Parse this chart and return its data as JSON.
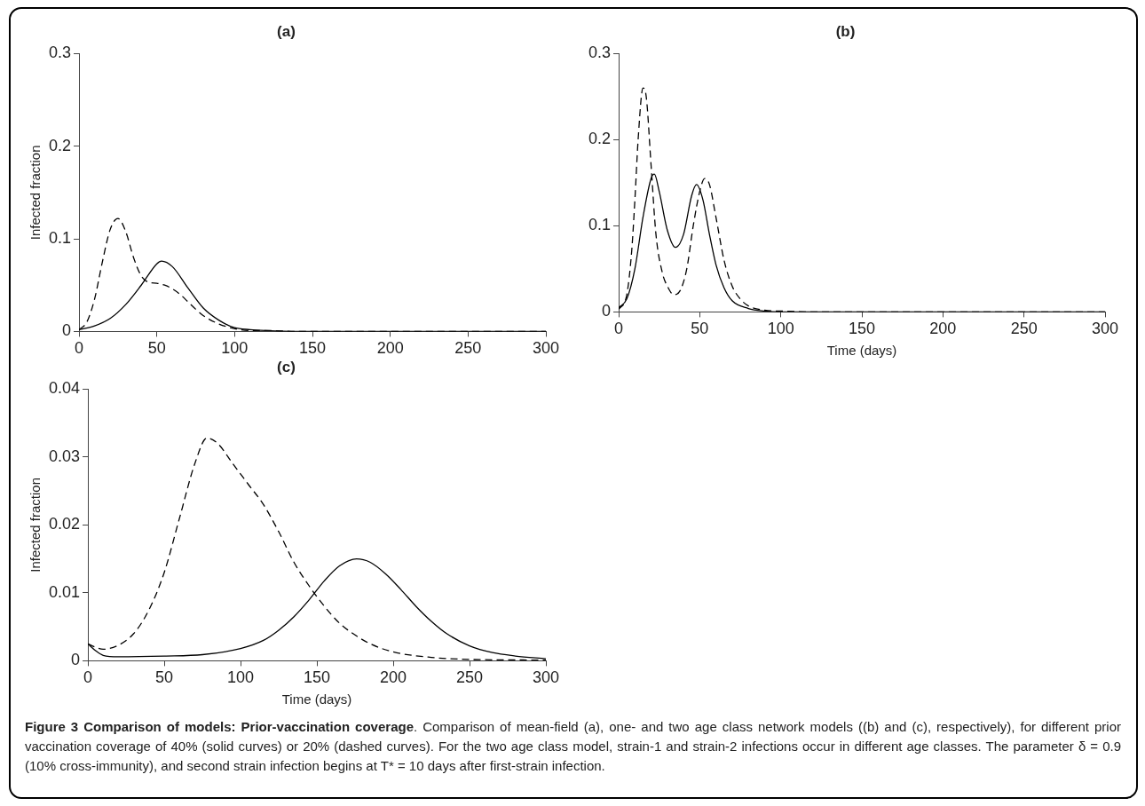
{
  "chart_data": [
    {
      "type": "line",
      "title": "(a)",
      "ylabel": "Infected fraction",
      "xlim": [
        0,
        300
      ],
      "xticks": [
        0,
        50,
        100,
        150,
        200,
        250,
        300
      ],
      "ylim": [
        0,
        0.3
      ],
      "yticks": [
        0,
        0.1,
        0.2,
        0.3
      ],
      "grid": false,
      "legend": false,
      "marker": "none",
      "series": [
        {
          "color": "#000000",
          "line_style": "solid",
          "x": [
            0,
            10,
            20,
            30,
            40,
            50,
            53,
            60,
            70,
            80,
            90,
            100,
            110,
            120,
            140,
            200,
            300
          ],
          "values": [
            0.002,
            0.006,
            0.014,
            0.029,
            0.05,
            0.073,
            0.076,
            0.07,
            0.047,
            0.025,
            0.012,
            0.004,
            0.002,
            0.001,
            0,
            0,
            0
          ]
        },
        {
          "color": "#000000",
          "line_style": "dashed",
          "x": [
            0,
            5,
            10,
            15,
            20,
            25,
            30,
            35,
            40,
            45,
            50,
            55,
            60,
            65,
            70,
            75,
            80,
            90,
            100,
            110,
            120,
            140,
            200,
            300
          ],
          "values": [
            0.002,
            0.01,
            0.035,
            0.075,
            0.11,
            0.122,
            0.108,
            0.08,
            0.06,
            0.053,
            0.052,
            0.05,
            0.046,
            0.04,
            0.032,
            0.024,
            0.017,
            0.008,
            0.003,
            0.001,
            0.001,
            0,
            0,
            0
          ]
        }
      ]
    },
    {
      "type": "line",
      "title": "(b)",
      "xlabel": "Time (days)",
      "xlim": [
        0,
        300
      ],
      "xticks": [
        0,
        50,
        100,
        150,
        200,
        250,
        300
      ],
      "ylim": [
        0,
        0.3
      ],
      "yticks": [
        0,
        0.1,
        0.2,
        0.3
      ],
      "grid": false,
      "legend": false,
      "marker": "none",
      "series": [
        {
          "color": "#000000",
          "line_style": "solid",
          "x": [
            0,
            5,
            10,
            15,
            20,
            22,
            25,
            30,
            35,
            40,
            45,
            48,
            52,
            56,
            60,
            65,
            70,
            80,
            90,
            100,
            120,
            300
          ],
          "values": [
            0.005,
            0.015,
            0.05,
            0.11,
            0.155,
            0.16,
            0.14,
            0.095,
            0.075,
            0.09,
            0.135,
            0.148,
            0.13,
            0.09,
            0.055,
            0.028,
            0.013,
            0.004,
            0.001,
            0,
            0,
            0
          ]
        },
        {
          "color": "#000000",
          "line_style": "dashed",
          "x": [
            0,
            5,
            8,
            10,
            12,
            15,
            17,
            20,
            23,
            27,
            30,
            34,
            38,
            42,
            46,
            50,
            53,
            56,
            60,
            65,
            70,
            75,
            80,
            90,
            100,
            120,
            300
          ],
          "values": [
            0.003,
            0.02,
            0.07,
            0.13,
            0.2,
            0.26,
            0.25,
            0.17,
            0.09,
            0.045,
            0.03,
            0.02,
            0.025,
            0.05,
            0.1,
            0.14,
            0.155,
            0.148,
            0.11,
            0.06,
            0.03,
            0.015,
            0.007,
            0.002,
            0.001,
            0,
            0
          ]
        }
      ]
    },
    {
      "type": "line",
      "title": "(c)",
      "xlabel": "Time (days)",
      "ylabel": "Infected fraction",
      "xlim": [
        0,
        300
      ],
      "xticks": [
        0,
        50,
        100,
        150,
        200,
        250,
        300
      ],
      "ylim": [
        0,
        0.04
      ],
      "yticks": [
        0,
        0.01,
        0.02,
        0.03,
        0.04
      ],
      "grid": false,
      "legend": false,
      "marker": "none",
      "annotations": [
        "Figure 3 Comparison of models: Prior-vaccination coverage",
        ". Comparison of mean-field (a), one- and two age class network models ((b) and (c), respectively), for different prior vaccination coverage of 40% (solid curves) or 20% (dashed curves). For the two age class model, strain-1 and strain-2 infections occur in different age classes. The parameter δ = 0.9 (10% cross-immunity), and second strain infection begins at T* = 10 days after first-strain infection."
      ],
      "series": [
        {
          "color": "#000000",
          "line_style": "solid",
          "x": [
            0,
            5,
            10,
            20,
            50,
            75,
            100,
            115,
            125,
            135,
            145,
            155,
            165,
            176,
            185,
            195,
            205,
            215,
            225,
            235,
            250,
            265,
            280,
            300
          ],
          "values": [
            0.0025,
            0.0015,
            0.0008,
            0.0006,
            0.0007,
            0.0009,
            0.0018,
            0.003,
            0.0045,
            0.0065,
            0.009,
            0.0118,
            0.014,
            0.015,
            0.0145,
            0.0128,
            0.0105,
            0.008,
            0.0058,
            0.004,
            0.0022,
            0.0012,
            0.0007,
            0.0003
          ]
        },
        {
          "color": "#000000",
          "line_style": "dashed",
          "x": [
            0,
            5,
            10,
            20,
            30,
            40,
            50,
            60,
            70,
            78,
            85,
            95,
            105,
            115,
            125,
            135,
            145,
            155,
            165,
            175,
            185,
            200,
            225,
            250,
            300
          ],
          "values": [
            0.0025,
            0.002,
            0.0017,
            0.0023,
            0.004,
            0.0075,
            0.013,
            0.021,
            0.029,
            0.0328,
            0.032,
            0.029,
            0.026,
            0.023,
            0.019,
            0.0145,
            0.011,
            0.008,
            0.0055,
            0.0038,
            0.0025,
            0.0013,
            0.0005,
            0.0002,
            0.0001
          ]
        }
      ]
    }
  ]
}
